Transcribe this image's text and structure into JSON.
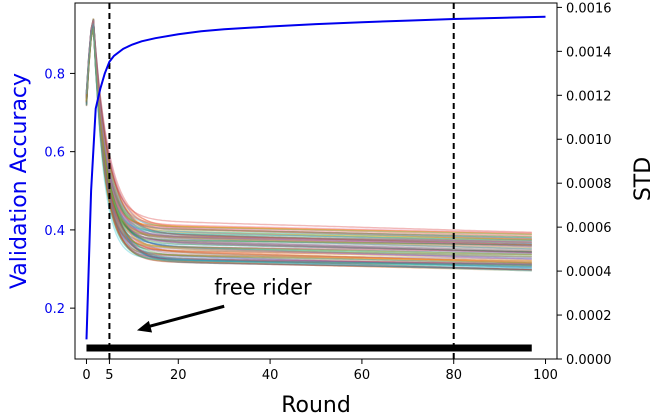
{
  "chart_data": {
    "type": "line",
    "xlabel": "Round",
    "ylabel_left": "Validation Accuracy",
    "ylabel_right": "STD",
    "x_ticks": [
      0,
      5,
      20,
      40,
      60,
      80,
      100
    ],
    "x_tick_labels": [
      "0",
      "5",
      "20",
      "40",
      "60",
      "80",
      "100"
    ],
    "xlim": [
      -2.5,
      102.5
    ],
    "ylim_left": [
      0.07,
      0.98
    ],
    "y_left_ticks": [
      0.2,
      0.4,
      0.6,
      0.8
    ],
    "y_left_tick_labels": [
      "0.2",
      "0.4",
      "0.6",
      "0.8"
    ],
    "ylim_right": [
      0.0,
      0.00162
    ],
    "y_right_ticks": [
      0.0,
      0.0002,
      0.0004,
      0.0006,
      0.0008,
      0.001,
      0.0012,
      0.0014,
      0.0016
    ],
    "y_right_tick_labels": [
      "0.0000",
      "0.0002",
      "0.0004",
      "0.0006",
      "0.0008",
      "0.0010",
      "0.0012",
      "0.0014",
      "0.0016"
    ],
    "vertical_lines": [
      5,
      80
    ],
    "accuracy": {
      "axis": "left",
      "color": "#0000ee",
      "x": [
        0,
        1,
        2,
        3,
        4,
        5,
        6,
        8,
        10,
        12,
        15,
        20,
        25,
        30,
        40,
        50,
        60,
        70,
        80,
        90,
        100
      ],
      "y": [
        0.12,
        0.5,
        0.71,
        0.76,
        0.8,
        0.83,
        0.845,
        0.863,
        0.874,
        0.882,
        0.89,
        0.9,
        0.908,
        0.913,
        0.92,
        0.926,
        0.931,
        0.935,
        0.939,
        0.942,
        0.945
      ]
    },
    "std_curves": {
      "axis": "right",
      "count": 100,
      "opacity": 0.33,
      "colors": [
        "#1f77b4",
        "#ff7f0e",
        "#2ca02c",
        "#d62728",
        "#9467bd",
        "#8c564b",
        "#e377c2",
        "#7f7f7f",
        "#bcbd22",
        "#17becf"
      ],
      "x_range": [
        0,
        97
      ],
      "start_range": [
        0.00115,
        0.00122
      ],
      "peak_x": 1.5,
      "peak_range": [
        0.0015,
        0.00155
      ],
      "end_range": [
        0.0004,
        0.00058
      ]
    },
    "free_rider": {
      "axis": "right",
      "color": "#000000",
      "x": [
        0,
        97
      ],
      "y": [
        5e-05,
        5e-05
      ],
      "annotation": "free rider",
      "arrow_from": [
        30,
        0.00024
      ],
      "arrow_to": [
        11,
        0.00013
      ]
    }
  }
}
